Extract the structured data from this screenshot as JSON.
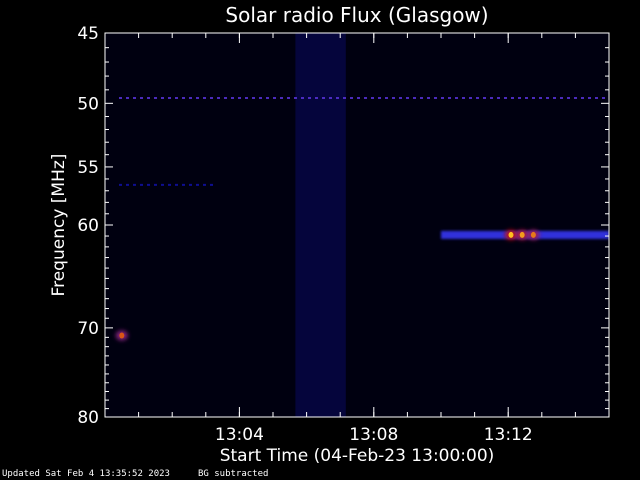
{
  "chart_data": {
    "type": "heatmap",
    "title": "Solar radio Flux (Glasgow)",
    "xlabel": "Start Time (04-Feb-23 13:00:00)",
    "ylabel": "Frequency [MHz]",
    "xlim": [
      "13:00:00",
      "13:15:00"
    ],
    "ylim": [
      45,
      80
    ],
    "y_axis_inverted": true,
    "y_scale": "log",
    "x_ticks": [
      "13:04",
      "13:08",
      "13:12"
    ],
    "y_ticks": [
      45,
      50,
      55,
      60,
      70,
      80
    ],
    "colormap_colors": [
      "#000010",
      "#1010a0",
      "#3838ff",
      "#c01010",
      "#ffc020"
    ],
    "features": [
      {
        "type": "horizontal_line",
        "freq_mhz": 49.6,
        "t_start": "13:00:25",
        "t_end": "13:15:00",
        "intensity": 0.55
      },
      {
        "type": "horizontal_line",
        "freq_mhz": 56.5,
        "t_start": "13:00:25",
        "t_end": "13:03:15",
        "intensity": 0.25
      },
      {
        "type": "vertical_band",
        "t_start": "13:05:40",
        "t_end": "13:07:10",
        "freq_low": 45,
        "freq_high": 80,
        "intensity": 0.14
      },
      {
        "type": "emission_band",
        "freq_mhz": 60.9,
        "t_start": "13:10:00",
        "t_end": "13:15:00",
        "intensity": 0.5
      },
      {
        "type": "burst",
        "freq_mhz": 60.9,
        "time": "13:12:05",
        "intensity": 1.0
      },
      {
        "type": "burst",
        "freq_mhz": 60.9,
        "time": "13:12:25",
        "intensity": 0.95
      },
      {
        "type": "burst",
        "freq_mhz": 60.9,
        "time": "13:12:45",
        "intensity": 0.9
      },
      {
        "type": "burst",
        "freq_mhz": 70.8,
        "time": "13:00:30",
        "intensity": 0.85
      }
    ]
  },
  "footer": {
    "updated": "Updated Sat Feb  4 13:35:52 2023",
    "bg_note": "BG subtracted"
  }
}
